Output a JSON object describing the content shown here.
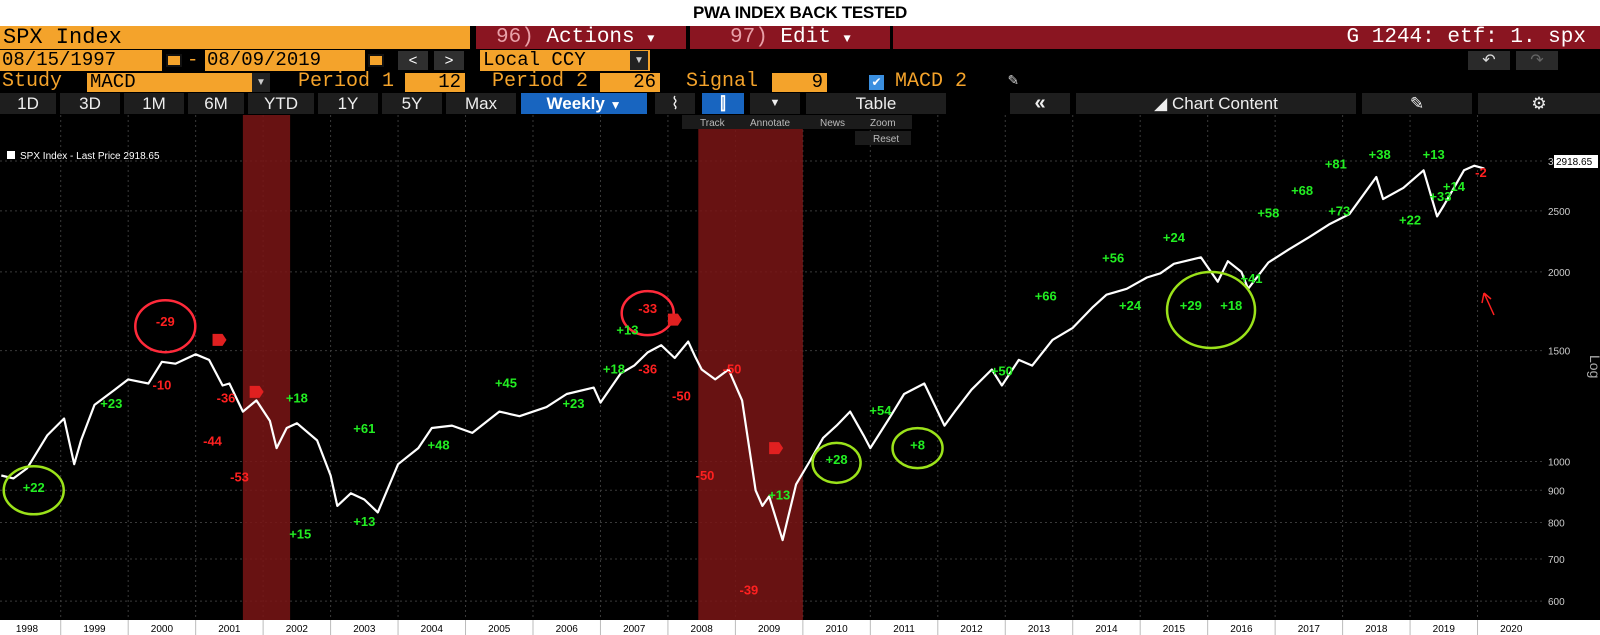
{
  "banner": "PWA INDEX BACK TESTED",
  "header": {
    "security": "SPX Index",
    "actions_num": "96)",
    "actions_label": "Actions",
    "edit_num": "97)",
    "edit_label": "Edit",
    "ticker": "G 1244: etf: 1. spx"
  },
  "dates": {
    "start": "08/15/1997",
    "sep": "-",
    "end": "08/09/2019",
    "prev": "<",
    "next": ">"
  },
  "currency": "Local CCY",
  "study": {
    "label": "Study",
    "value": "MACD",
    "period1_label": "Period 1",
    "period1": "12",
    "period2_label": "Period 2",
    "period2": "26",
    "signal_label": "Signal",
    "signal": "9",
    "overlay_label": "MACD 2"
  },
  "tabs": [
    {
      "label": "1D"
    },
    {
      "label": "3D"
    },
    {
      "label": "1M"
    },
    {
      "label": "6M"
    },
    {
      "label": "YTD"
    },
    {
      "label": "1Y"
    },
    {
      "label": "5Y"
    },
    {
      "label": "Max"
    },
    {
      "label": "Weekly"
    }
  ],
  "toolbar": {
    "table": "Table",
    "collapse": "«",
    "chart_content": "Chart Content"
  },
  "tools": {
    "track": "Track",
    "annotate": "Annotate",
    "news": "News",
    "zoom": "Zoom",
    "reset": "Reset"
  },
  "legend_text": "SPX Index - Last Price 2918.65",
  "last_price": "2918.65",
  "axis_side_label": "Log",
  "colors": {
    "gain": "#22ee22",
    "loss": "#ff2020",
    "line": "#ffffff",
    "recession": "#7a1515",
    "circle_gain": "#9be21a",
    "circle_loss": "#ff2a3a"
  },
  "chart_data": {
    "type": "line",
    "title": "",
    "yscale": "log",
    "ylim": [
      560,
      3300
    ],
    "xlim": [
      1997.6,
      2020.5
    ],
    "y_ticks": [
      600,
      700,
      800,
      900,
      1000,
      1500,
      2000,
      2500,
      3000
    ],
    "y_tick_labels": [
      "600",
      "700",
      "800",
      "900",
      "1000",
      "1500",
      "2000",
      "2500",
      "3000"
    ],
    "x_ticks": [
      1998,
      1999,
      2000,
      2001,
      2002,
      2003,
      2004,
      2005,
      2006,
      2007,
      2008,
      2009,
      2010,
      2011,
      2012,
      2013,
      2014,
      2015,
      2016,
      2017,
      2018,
      2019,
      2020
    ],
    "x_tick_labels": [
      "1998",
      "1999",
      "2000",
      "2001",
      "2002",
      "2003",
      "2004",
      "2005",
      "2006",
      "2007",
      "2008",
      "2009",
      "2010",
      "2011",
      "2012",
      "2013",
      "2014",
      "2015",
      "2016",
      "2017",
      "2018",
      "2019",
      "2020"
    ],
    "series": [
      {
        "name": "",
        "x": [
          1997.62,
          1997.8,
          1998.0,
          1998.3,
          1998.55,
          1998.7,
          1998.8,
          1999.0,
          1999.3,
          1999.5,
          1999.8,
          2000.0,
          2000.2,
          2000.5,
          2000.7,
          2000.9,
          2001.0,
          2001.2,
          2001.4,
          2001.6,
          2001.7,
          2001.85,
          2002.0,
          2002.3,
          2002.5,
          2002.6,
          2002.8,
          2003.0,
          2003.2,
          2003.5,
          2003.8,
          2004.0,
          2004.3,
          2004.6,
          2005.0,
          2005.3,
          2005.7,
          2006.0,
          2006.4,
          2006.5,
          2006.8,
          2007.0,
          2007.2,
          2007.4,
          2007.6,
          2007.8,
          2007.9,
          2008.0,
          2008.2,
          2008.4,
          2008.6,
          2008.8,
          2008.9,
          2009.0,
          2009.2,
          2009.4,
          2009.6,
          2009.8,
          2010.0,
          2010.2,
          2010.4,
          2010.5,
          2010.8,
          2011.0,
          2011.3,
          2011.6,
          2011.75,
          2012.0,
          2012.3,
          2012.45,
          2012.7,
          2012.9,
          2013.2,
          2013.5,
          2013.8,
          2014.0,
          2014.3,
          2014.6,
          2014.8,
          2015.0,
          2015.4,
          2015.65,
          2015.8,
          2016.0,
          2016.1,
          2016.4,
          2016.7,
          2017.0,
          2017.3,
          2017.6,
          2018.0,
          2018.1,
          2018.4,
          2018.7,
          2018.9,
          2019.0,
          2019.3,
          2019.45,
          2019.6
        ],
        "values": [
          950,
          940,
          975,
          1100,
          1170,
          990,
          1080,
          1230,
          1300,
          1350,
          1330,
          1440,
          1430,
          1480,
          1450,
          1320,
          1330,
          1200,
          1250,
          1160,
          1050,
          1130,
          1150,
          1080,
          950,
          850,
          890,
          870,
          830,
          990,
          1050,
          1130,
          1140,
          1110,
          1200,
          1180,
          1220,
          1280,
          1310,
          1240,
          1380,
          1420,
          1490,
          1530,
          1460,
          1550,
          1470,
          1400,
          1350,
          1400,
          1250,
          900,
          850,
          880,
          750,
          920,
          1000,
          1090,
          1140,
          1200,
          1100,
          1050,
          1180,
          1280,
          1330,
          1140,
          1200,
          1300,
          1400,
          1320,
          1450,
          1420,
          1560,
          1630,
          1760,
          1840,
          1880,
          1960,
          1990,
          2060,
          2110,
          1930,
          2080,
          2000,
          1880,
          2070,
          2170,
          2270,
          2380,
          2470,
          2830,
          2610,
          2720,
          2900,
          2450,
          2550,
          2900,
          2950,
          2920
        ]
      }
    ],
    "recessions": [
      [
        2001.2,
        2001.9
      ],
      [
        2007.95,
        2009.5
      ]
    ],
    "annotations": [
      {
        "text": "+22",
        "x": 1998.1,
        "y": 895,
        "kind": "gain"
      },
      {
        "text": "+23",
        "x": 1999.25,
        "y": 1215,
        "kind": "gain"
      },
      {
        "text": "-10",
        "x": 2000.0,
        "y": 1300,
        "kind": "loss"
      },
      {
        "text": "-29",
        "x": 2000.05,
        "y": 1640,
        "kind": "loss"
      },
      {
        "text": "-36",
        "x": 2000.95,
        "y": 1240,
        "kind": "loss"
      },
      {
        "text": "-44",
        "x": 2000.75,
        "y": 1060,
        "kind": "loss"
      },
      {
        "text": "-53",
        "x": 2001.15,
        "y": 930,
        "kind": "loss"
      },
      {
        "text": "+18",
        "x": 2002.0,
        "y": 1240,
        "kind": "gain"
      },
      {
        "text": "+15",
        "x": 2002.05,
        "y": 755,
        "kind": "gain"
      },
      {
        "text": "+13",
        "x": 2003.0,
        "y": 790,
        "kind": "gain"
      },
      {
        "text": "+61",
        "x": 2003.0,
        "y": 1110,
        "kind": "gain"
      },
      {
        "text": "+48",
        "x": 2004.1,
        "y": 1045,
        "kind": "gain"
      },
      {
        "text": "+45",
        "x": 2005.1,
        "y": 1310,
        "kind": "gain"
      },
      {
        "text": "+23",
        "x": 2006.1,
        "y": 1215,
        "kind": "gain"
      },
      {
        "text": "+13",
        "x": 2006.9,
        "y": 1590,
        "kind": "gain"
      },
      {
        "text": "+18",
        "x": 2006.7,
        "y": 1380,
        "kind": "gain"
      },
      {
        "text": "-36",
        "x": 2007.2,
        "y": 1380,
        "kind": "loss"
      },
      {
        "text": "-33",
        "x": 2007.2,
        "y": 1720,
        "kind": "loss"
      },
      {
        "text": "-50",
        "x": 2008.45,
        "y": 1380,
        "kind": "loss"
      },
      {
        "text": "-50",
        "x": 2007.7,
        "y": 1250,
        "kind": "loss"
      },
      {
        "text": "-50",
        "x": 2008.05,
        "y": 935,
        "kind": "loss"
      },
      {
        "text": "+13",
        "x": 2009.15,
        "y": 870,
        "kind": "gain"
      },
      {
        "text": "-39",
        "x": 2008.7,
        "y": 615,
        "kind": "loss"
      },
      {
        "text": "+28",
        "x": 2010.0,
        "y": 990,
        "kind": "gain"
      },
      {
        "text": "+54",
        "x": 2010.65,
        "y": 1185,
        "kind": "gain"
      },
      {
        "text": "+8",
        "x": 2011.2,
        "y": 1045,
        "kind": "gain"
      },
      {
        "text": "+50",
        "x": 2012.45,
        "y": 1370,
        "kind": "gain"
      },
      {
        "text": "+66",
        "x": 2013.1,
        "y": 1800,
        "kind": "gain"
      },
      {
        "text": "+56",
        "x": 2014.1,
        "y": 2070,
        "kind": "gain"
      },
      {
        "text": "+24",
        "x": 2014.35,
        "y": 1740,
        "kind": "gain"
      },
      {
        "text": "+24",
        "x": 2015.0,
        "y": 2230,
        "kind": "gain"
      },
      {
        "text": "+29",
        "x": 2015.25,
        "y": 1740,
        "kind": "gain"
      },
      {
        "text": "+18",
        "x": 2015.85,
        "y": 1740,
        "kind": "gain"
      },
      {
        "text": "+41",
        "x": 2016.15,
        "y": 1920,
        "kind": "gain"
      },
      {
        "text": "+58",
        "x": 2016.4,
        "y": 2440,
        "kind": "gain"
      },
      {
        "text": "+68",
        "x": 2016.9,
        "y": 2650,
        "kind": "gain"
      },
      {
        "text": "+73",
        "x": 2017.45,
        "y": 2460,
        "kind": "gain"
      },
      {
        "text": "+81",
        "x": 2017.4,
        "y": 2920,
        "kind": "gain"
      },
      {
        "text": "+38",
        "x": 2018.05,
        "y": 3020,
        "kind": "gain"
      },
      {
        "text": "+13",
        "x": 2018.85,
        "y": 3020,
        "kind": "gain"
      },
      {
        "text": "+14",
        "x": 2019.15,
        "y": 2690,
        "kind": "gain"
      },
      {
        "text": "+33",
        "x": 2018.95,
        "y": 2590,
        "kind": "gain"
      },
      {
        "text": "+22",
        "x": 2018.5,
        "y": 2380,
        "kind": "gain"
      },
      {
        "text": "-2",
        "x": 2019.55,
        "y": 2830,
        "kind": "loss"
      }
    ],
    "circles": [
      {
        "x": 1998.1,
        "y": 900,
        "rx": 30,
        "ry": 24,
        "kind": "gain"
      },
      {
        "x": 2000.05,
        "y": 1640,
        "rx": 30,
        "ry": 26,
        "kind": "loss"
      },
      {
        "x": 2007.2,
        "y": 1720,
        "rx": 26,
        "ry": 22,
        "kind": "loss"
      },
      {
        "x": 2010.0,
        "y": 995,
        "rx": 24,
        "ry": 20,
        "kind": "gain"
      },
      {
        "x": 2011.2,
        "y": 1050,
        "rx": 25,
        "ry": 20,
        "kind": "gain"
      },
      {
        "x": 2015.55,
        "y": 1740,
        "rx": 44,
        "ry": 38,
        "kind": "gain"
      }
    ],
    "rec_markers": [
      {
        "x": 2000.75,
        "y": 1560
      },
      {
        "x": 2001.3,
        "y": 1290
      },
      {
        "x": 2007.5,
        "y": 1680
      },
      {
        "x": 2009.0,
        "y": 1050
      }
    ]
  }
}
